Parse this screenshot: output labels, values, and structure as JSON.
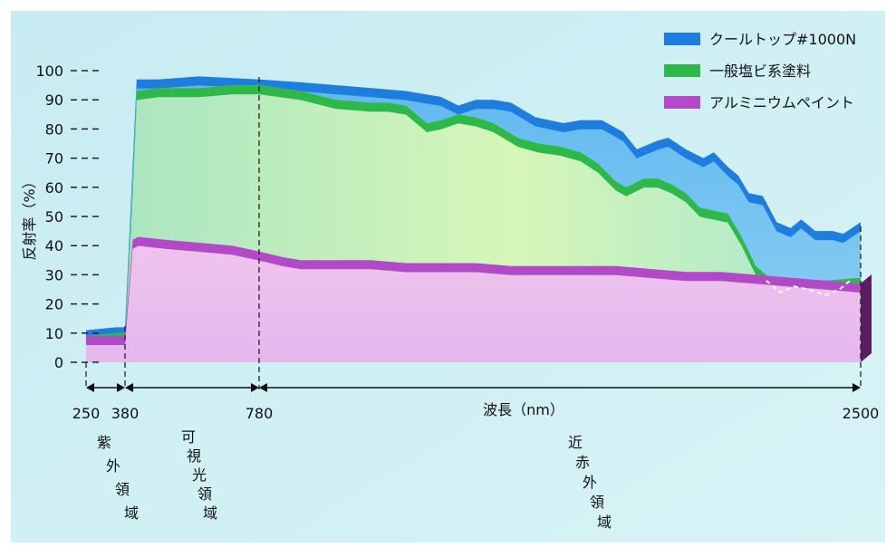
{
  "chart_data": {
    "type": "area",
    "ylabel": "反射率（%）",
    "xlabel": "波長（nm）",
    "ylim": [
      0,
      100
    ],
    "y_ticks": [
      0,
      10,
      20,
      30,
      40,
      50,
      60,
      70,
      80,
      90,
      100
    ],
    "x_ticks": [
      "250",
      "380",
      "780",
      "2500"
    ],
    "legend_placement": "top-right",
    "regions": [
      {
        "label": "紫外領域",
        "range": [
          250,
          380
        ],
        "chars": [
          "紫",
          "外",
          "領",
          "域"
        ]
      },
      {
        "label": "可視光領域",
        "range": [
          380,
          780
        ],
        "chars": [
          "可",
          "視",
          "光",
          "領",
          "域"
        ]
      },
      {
        "label": "近赤外領域",
        "range": [
          780,
          2500
        ],
        "chars": [
          "近",
          "赤",
          "外",
          "領",
          "域"
        ]
      }
    ],
    "series": [
      {
        "name": "クールトップ#1000N",
        "color": "#1f7de0",
        "points": [
          [
            250,
            11
          ],
          [
            350,
            12
          ],
          [
            380,
            12
          ],
          [
            403,
            68
          ],
          [
            415,
            97
          ],
          [
            480,
            97
          ],
          [
            600,
            98
          ],
          [
            780,
            97
          ],
          [
            900,
            96
          ],
          [
            1000,
            95
          ],
          [
            1100,
            94
          ],
          [
            1200,
            93
          ],
          [
            1300,
            91
          ],
          [
            1350,
            88
          ],
          [
            1400,
            90
          ],
          [
            1450,
            90
          ],
          [
            1500,
            89
          ],
          [
            1570,
            84
          ],
          [
            1650,
            82
          ],
          [
            1700,
            83
          ],
          [
            1760,
            83
          ],
          [
            1820,
            79
          ],
          [
            1860,
            73
          ],
          [
            1920,
            76
          ],
          [
            1950,
            77
          ],
          [
            2000,
            73
          ],
          [
            2050,
            70
          ],
          [
            2080,
            72
          ],
          [
            2120,
            67
          ],
          [
            2150,
            64
          ],
          [
            2180,
            58
          ],
          [
            2220,
            57
          ],
          [
            2260,
            48
          ],
          [
            2300,
            46
          ],
          [
            2330,
            49
          ],
          [
            2370,
            45
          ],
          [
            2420,
            45
          ],
          [
            2450,
            44
          ],
          [
            2500,
            48
          ]
        ]
      },
      {
        "name": "一般塩ビ系塗料",
        "color": "#2eb84a",
        "points": [
          [
            250,
            9
          ],
          [
            350,
            10
          ],
          [
            380,
            10
          ],
          [
            403,
            60
          ],
          [
            415,
            93
          ],
          [
            480,
            94
          ],
          [
            600,
            94
          ],
          [
            700,
            95
          ],
          [
            780,
            95
          ],
          [
            900,
            93
          ],
          [
            1000,
            90
          ],
          [
            1100,
            89
          ],
          [
            1150,
            89
          ],
          [
            1200,
            88
          ],
          [
            1260,
            82
          ],
          [
            1300,
            83
          ],
          [
            1350,
            85
          ],
          [
            1400,
            84
          ],
          [
            1450,
            82
          ],
          [
            1520,
            77
          ],
          [
            1580,
            75
          ],
          [
            1640,
            74
          ],
          [
            1700,
            72
          ],
          [
            1750,
            68
          ],
          [
            1800,
            62
          ],
          [
            1830,
            60
          ],
          [
            1880,
            63
          ],
          [
            1920,
            63
          ],
          [
            1960,
            61
          ],
          [
            2000,
            58
          ],
          [
            2040,
            53
          ],
          [
            2080,
            52
          ],
          [
            2120,
            51
          ],
          [
            2160,
            43
          ],
          [
            2200,
            33
          ],
          [
            2230,
            30
          ],
          [
            2260,
            28
          ],
          [
            2300,
            28
          ],
          [
            2400,
            28
          ],
          [
            2500,
            29
          ]
        ]
      },
      {
        "name": "アルミニウムペイント",
        "color": "#b24ac8",
        "points": [
          [
            250,
            9
          ],
          [
            380,
            9
          ],
          [
            403,
            42
          ],
          [
            420,
            43
          ],
          [
            500,
            42
          ],
          [
            600,
            41
          ],
          [
            700,
            40
          ],
          [
            780,
            38
          ],
          [
            850,
            36
          ],
          [
            900,
            35
          ],
          [
            1000,
            35
          ],
          [
            1100,
            35
          ],
          [
            1200,
            34
          ],
          [
            1300,
            34
          ],
          [
            1400,
            34
          ],
          [
            1500,
            33
          ],
          [
            1600,
            33
          ],
          [
            1700,
            33
          ],
          [
            1800,
            33
          ],
          [
            1900,
            32
          ],
          [
            2000,
            31
          ],
          [
            2100,
            31
          ],
          [
            2200,
            30
          ],
          [
            2300,
            29
          ],
          [
            2400,
            28
          ],
          [
            2500,
            27
          ]
        ]
      }
    ],
    "annotation_dashed_region": "dashed white curve near 2230–2450 nm, ~25–30%"
  },
  "legend": {
    "items": [
      "クールトップ#1000N",
      "一般塩ビ系塗料",
      "アルミニウムペイント"
    ]
  }
}
